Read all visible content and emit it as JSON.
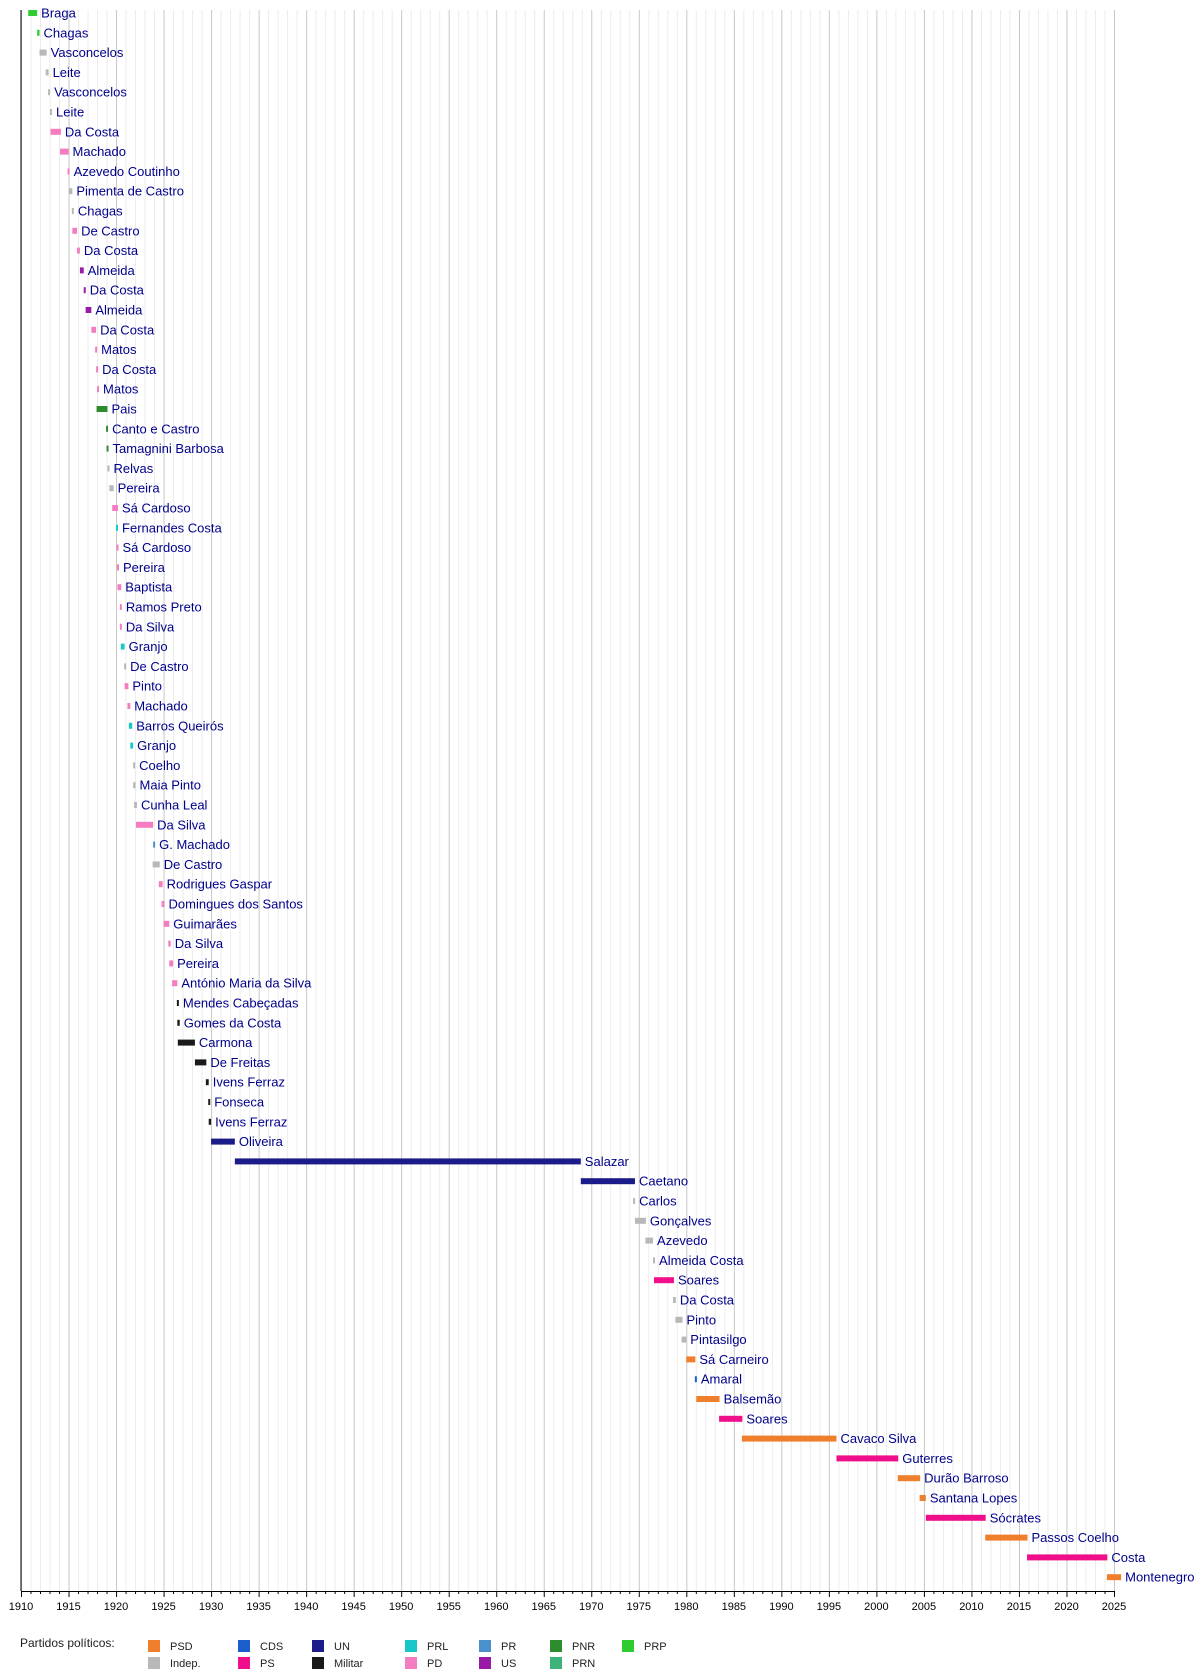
{
  "chart_data": {
    "type": "timeline",
    "xlim": [
      1910,
      2025
    ],
    "x_ticks": [
      1910,
      1915,
      1920,
      1925,
      1930,
      1935,
      1940,
      1945,
      1950,
      1955,
      1960,
      1965,
      1970,
      1975,
      1980,
      1985,
      1990,
      1995,
      2000,
      2005,
      2010,
      2015,
      2020,
      2025
    ],
    "grid": true,
    "legend": {
      "title": "Partidos políticos:",
      "placement": "bottom",
      "entries": [
        {
          "key": "PSD",
          "label": "PSD"
        },
        {
          "key": "Indep",
          "label": "Indep."
        },
        {
          "key": "CDS",
          "label": "CDS"
        },
        {
          "key": "PS",
          "label": "PS"
        },
        {
          "key": "UN",
          "label": "UN"
        },
        {
          "key": "Militar",
          "label": "Militar"
        },
        {
          "key": "PRL",
          "label": "PRL"
        },
        {
          "key": "PD",
          "label": "PD"
        },
        {
          "key": "PR",
          "label": "PR"
        },
        {
          "key": "US",
          "label": "US"
        },
        {
          "key": "PNR",
          "label": "PNR"
        },
        {
          "key": "PRN",
          "label": "PRN"
        },
        {
          "key": "PRP",
          "label": "PRP"
        }
      ]
    },
    "party_colors": {
      "PSD": "#f07f2d",
      "Indep": "#b8b8b8",
      "CDS": "#1c5fcc",
      "PS": "#ef0f8a",
      "UN": "#1b1b8a",
      "Militar": "#1a1a1a",
      "PRL": "#18c8c8",
      "PD": "#f57cc0",
      "PR": "#4a90cc",
      "US": "#9a1aa8",
      "PNR": "#2e8b2e",
      "PRN": "#3bb37a",
      "PRP": "#2ecc2e"
    },
    "series": [
      {
        "name": "Braga",
        "start": 1910.76,
        "end": 1911.7,
        "party": "PRP"
      },
      {
        "name": "Chagas",
        "start": 1911.7,
        "end": 1911.95,
        "party": "PRP"
      },
      {
        "name": "Vasconcelos",
        "start": 1911.95,
        "end": 1912.7,
        "party": "Indep"
      },
      {
        "name": "Leite",
        "start": 1912.6,
        "end": 1912.9,
        "party": "Indep"
      },
      {
        "name": "Vasconcelos",
        "start": 1912.85,
        "end": 1913.05,
        "party": "Indep"
      },
      {
        "name": "Leite",
        "start": 1913.05,
        "end": 1913.2,
        "party": "Indep"
      },
      {
        "name": "Da Costa",
        "start": 1913.1,
        "end": 1914.2,
        "party": "PD"
      },
      {
        "name": "Machado",
        "start": 1914.1,
        "end": 1915.0,
        "party": "PD"
      },
      {
        "name": "Azevedo Coutinho",
        "start": 1914.9,
        "end": 1915.1,
        "party": "PD"
      },
      {
        "name": "Pimenta de Castro",
        "start": 1915.05,
        "end": 1915.4,
        "party": "Indep"
      },
      {
        "name": "Chagas",
        "start": 1915.35,
        "end": 1915.5,
        "party": "Indep"
      },
      {
        "name": "De Castro",
        "start": 1915.4,
        "end": 1915.9,
        "party": "PD"
      },
      {
        "name": "Da Costa",
        "start": 1915.9,
        "end": 1916.2,
        "party": "PD"
      },
      {
        "name": "Almeida",
        "start": 1916.2,
        "end": 1916.6,
        "party": "US"
      },
      {
        "name": "Da Costa",
        "start": 1916.6,
        "end": 1916.8,
        "party": "US"
      },
      {
        "name": "Almeida",
        "start": 1916.8,
        "end": 1917.4,
        "party": "US"
      },
      {
        "name": "Da Costa",
        "start": 1917.4,
        "end": 1917.9,
        "party": "PD"
      },
      {
        "name": "Matos",
        "start": 1917.8,
        "end": 1918.0,
        "party": "PD"
      },
      {
        "name": "Da Costa",
        "start": 1917.9,
        "end": 1918.1,
        "party": "PD"
      },
      {
        "name": "Matos",
        "start": 1918.0,
        "end": 1918.15,
        "party": "PD"
      },
      {
        "name": "Pais",
        "start": 1917.95,
        "end": 1919.1,
        "party": "PNR"
      },
      {
        "name": "Canto e Castro",
        "start": 1918.95,
        "end": 1919.1,
        "party": "PNR"
      },
      {
        "name": "Tamagnini Barbosa",
        "start": 1919.0,
        "end": 1919.2,
        "party": "PNR"
      },
      {
        "name": "Relvas",
        "start": 1919.1,
        "end": 1919.3,
        "party": "Indep"
      },
      {
        "name": "Pereira",
        "start": 1919.3,
        "end": 1919.75,
        "party": "Indep"
      },
      {
        "name": "Sá Cardoso",
        "start": 1919.6,
        "end": 1920.2,
        "party": "PD"
      },
      {
        "name": "Fernandes Costa",
        "start": 1920.0,
        "end": 1920.1,
        "party": "PRL"
      },
      {
        "name": "Sá Cardoso",
        "start": 1920.05,
        "end": 1920.2,
        "party": "PD"
      },
      {
        "name": "Pereira",
        "start": 1920.1,
        "end": 1920.25,
        "party": "PD"
      },
      {
        "name": "Baptista",
        "start": 1920.15,
        "end": 1920.55,
        "party": "PD"
      },
      {
        "name": "Ramos Preto",
        "start": 1920.4,
        "end": 1920.55,
        "party": "PD"
      },
      {
        "name": "Da Silva",
        "start": 1920.4,
        "end": 1920.6,
        "party": "PD"
      },
      {
        "name": "Granjo",
        "start": 1920.5,
        "end": 1920.9,
        "party": "PRL"
      },
      {
        "name": "De Castro",
        "start": 1920.85,
        "end": 1921.05,
        "party": "Indep"
      },
      {
        "name": "Pinto",
        "start": 1920.9,
        "end": 1921.3,
        "party": "PD"
      },
      {
        "name": "Machado",
        "start": 1921.2,
        "end": 1921.5,
        "party": "PD"
      },
      {
        "name": "Barros Queirós",
        "start": 1921.35,
        "end": 1921.7,
        "party": "PRL"
      },
      {
        "name": "Granjo",
        "start": 1921.5,
        "end": 1921.8,
        "party": "PRL"
      },
      {
        "name": "Coelho",
        "start": 1921.8,
        "end": 1921.95,
        "party": "Indep"
      },
      {
        "name": "Maia Pinto",
        "start": 1921.8,
        "end": 1922.05,
        "party": "Indep"
      },
      {
        "name": "Cunha Leal",
        "start": 1921.9,
        "end": 1922.2,
        "party": "Indep"
      },
      {
        "name": "Da Silva",
        "start": 1922.1,
        "end": 1923.9,
        "party": "PD"
      },
      {
        "name": "G. Machado",
        "start": 1923.9,
        "end": 1924.1,
        "party": "PR"
      },
      {
        "name": "De Castro",
        "start": 1923.85,
        "end": 1924.6,
        "party": "Indep"
      },
      {
        "name": "Rodrigues Gaspar",
        "start": 1924.5,
        "end": 1924.9,
        "party": "PD"
      },
      {
        "name": "Domingues dos Santos",
        "start": 1924.8,
        "end": 1925.1,
        "party": "PD"
      },
      {
        "name": "Guimarães",
        "start": 1925.0,
        "end": 1925.6,
        "party": "PD"
      },
      {
        "name": "Da Silva",
        "start": 1925.5,
        "end": 1925.75,
        "party": "PD"
      },
      {
        "name": "Pereira",
        "start": 1925.6,
        "end": 1926.0,
        "party": "PD"
      },
      {
        "name": "António Maria da Silva",
        "start": 1925.9,
        "end": 1926.45,
        "party": "PD"
      },
      {
        "name": "Mendes Cabeçadas",
        "start": 1926.4,
        "end": 1926.55,
        "party": "Militar"
      },
      {
        "name": "Gomes da Costa",
        "start": 1926.45,
        "end": 1926.7,
        "party": "Militar"
      },
      {
        "name": "Carmona",
        "start": 1926.5,
        "end": 1928.3,
        "party": "Militar"
      },
      {
        "name": "De Freitas",
        "start": 1928.3,
        "end": 1929.5,
        "party": "Militar"
      },
      {
        "name": "Ivens Ferraz",
        "start": 1929.45,
        "end": 1929.75,
        "party": "Militar"
      },
      {
        "name": "Fonseca",
        "start": 1929.7,
        "end": 1929.85,
        "party": "Militar"
      },
      {
        "name": "Ivens Ferraz",
        "start": 1929.75,
        "end": 1930.0,
        "party": "Militar"
      },
      {
        "name": "Oliveira",
        "start": 1930.0,
        "end": 1932.5,
        "party": "UN"
      },
      {
        "name": "Salazar",
        "start": 1932.5,
        "end": 1968.9,
        "party": "UN"
      },
      {
        "name": "Caetano",
        "start": 1968.9,
        "end": 1974.6,
        "party": "UN"
      },
      {
        "name": "Carlos",
        "start": 1974.4,
        "end": 1974.6,
        "party": "Indep"
      },
      {
        "name": "Gonçalves",
        "start": 1974.6,
        "end": 1975.75,
        "party": "Indep"
      },
      {
        "name": "Azevedo",
        "start": 1975.7,
        "end": 1976.5,
        "party": "Indep"
      },
      {
        "name": "Almeida Costa",
        "start": 1976.5,
        "end": 1976.7,
        "party": "Indep"
      },
      {
        "name": "Soares",
        "start": 1976.6,
        "end": 1978.7,
        "party": "PS"
      },
      {
        "name": "Da Costa",
        "start": 1978.6,
        "end": 1978.9,
        "party": "Indep"
      },
      {
        "name": "Pinto",
        "start": 1978.85,
        "end": 1979.6,
        "party": "Indep"
      },
      {
        "name": "Pintasilgo",
        "start": 1979.5,
        "end": 1980.0,
        "party": "Indep"
      },
      {
        "name": "Sá Carneiro",
        "start": 1980.0,
        "end": 1980.95,
        "party": "PSD"
      },
      {
        "name": "Amaral",
        "start": 1980.9,
        "end": 1981.05,
        "party": "CDS"
      },
      {
        "name": "Balsemão",
        "start": 1981.05,
        "end": 1983.5,
        "party": "PSD"
      },
      {
        "name": "Soares",
        "start": 1983.45,
        "end": 1985.9,
        "party": "PS"
      },
      {
        "name": "Cavaco Silva",
        "start": 1985.85,
        "end": 1995.8,
        "party": "PSD"
      },
      {
        "name": "Guterres",
        "start": 1995.8,
        "end": 2002.3,
        "party": "PS"
      },
      {
        "name": "Durão Barroso",
        "start": 2002.25,
        "end": 2004.6,
        "party": "PSD"
      },
      {
        "name": "Santana Lopes",
        "start": 2004.55,
        "end": 2005.2,
        "party": "PSD"
      },
      {
        "name": "Sócrates",
        "start": 2005.2,
        "end": 2011.5,
        "party": "PS"
      },
      {
        "name": "Passos Coelho",
        "start": 2011.45,
        "end": 2015.9,
        "party": "PSD"
      },
      {
        "name": "Costa",
        "start": 2015.85,
        "end": 2024.3,
        "party": "PS"
      },
      {
        "name": "Montenegro",
        "start": 2024.25,
        "end": 2025.75,
        "party": "PSD"
      }
    ]
  }
}
